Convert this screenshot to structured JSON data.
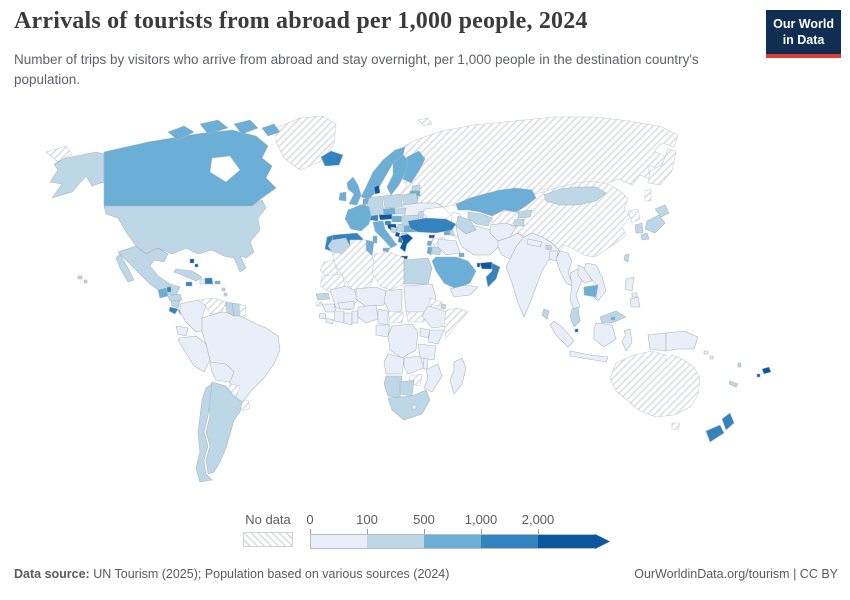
{
  "header": {
    "title": "Arrivals of tourists from abroad per 1,000 people, 2024",
    "subtitle": "Number of trips by visitors who arrive from abroad and stay overnight, per 1,000 people in the destination country's population.",
    "logo_line1": "Our World",
    "logo_line2": "in Data",
    "logo_bg": "#0f2e51",
    "logo_accent": "#dc3f34"
  },
  "legend": {
    "no_data_label": "No data",
    "tick_labels": [
      "0",
      "100",
      "500",
      "1,000",
      "2,000"
    ]
  },
  "footer": {
    "source_label": "Data source:",
    "source_text": " UN Tourism (2025); Population based on various sources (2024)",
    "right_text": "OurWorldinData.org/tourism | CC BY"
  },
  "map": {
    "palette": {
      "bin0": "#e9eef8",
      "bin1": "#bdd7e7",
      "bin2": "#6baed6",
      "bin3": "#3383bf",
      "bin4": "#0d57a1",
      "water": "#ffffff",
      "no_data": "hatch"
    },
    "bin_order": [
      "bin0",
      "bin1",
      "bin2",
      "bin3",
      "bin4"
    ],
    "regions": {
      "chukotka": "no_data",
      "alaska": "bin1",
      "canada": "bin2",
      "greenland": "no_data",
      "iceland": "bin3",
      "usa": "bin1",
      "hawaii": "bin1",
      "mexico": "bin1",
      "belize": "bin3",
      "guatemala": "bin2",
      "honduras": "bin1",
      "nicaragua": "bin1",
      "costa-rica": "bin3",
      "panama": "bin2",
      "cuba": "bin1",
      "jamaica": "bin3",
      "haiti": "bin0",
      "dominican-republic": "bin3",
      "bahamas": "bin4",
      "puerto-rico": "bin2",
      "lesser-antilles": "bin1",
      "trinidad": "bin1",
      "colombia": "bin0",
      "venezuela": "no_data",
      "guyana": "bin1",
      "suriname": "bin1",
      "french-guiana": "no_data",
      "ecuador": "bin0",
      "peru": "bin0",
      "brazil": "bin0",
      "bolivia": "bin0",
      "paraguay": "no_data",
      "uruguay": "no_data",
      "argentina": "bin1",
      "chile": "bin1",
      "norway": "bin2",
      "sweden": "bin2",
      "finland": "bin2",
      "denmark": "bin4",
      "estonia": "bin1",
      "latvia": "bin2",
      "lithuania": "bin2",
      "uk": "bin2",
      "ireland": "bin2",
      "netherlands": "bin2",
      "belgium": "bin2",
      "germany": "bin1",
      "poland": "bin1",
      "belarus": "bin1",
      "ukraine": "bin0",
      "moldova": "bin1",
      "czechia": "bin2",
      "slovakia": "bin1",
      "austria": "bin4",
      "switzerland": "bin3",
      "france": "bin2",
      "spain": "bin3",
      "portugal": "bin3",
      "italy": "bin2",
      "slovenia": "bin3",
      "croatia": "bin4",
      "hungary": "bin2",
      "bosnia": "bin1",
      "serbia": "bin1",
      "montenegro": "bin4",
      "albania": "bin3",
      "north-macedonia": "bin1",
      "greece": "bin4",
      "bulgaria": "bin2",
      "romania": "bin1",
      "russia": "no_data",
      "svalbard": "no_data",
      "georgia": "bin3",
      "armenia": "bin2",
      "azerbaijan": "bin1",
      "turkey": "bin3",
      "cyprus": "bin4",
      "syria": "no_data",
      "lebanon": "bin2",
      "israel": "bin2",
      "jordan": "bin1",
      "iraq": "bin0",
      "iran": "bin0",
      "kuwait": "bin2",
      "saudi-arabia": "bin2",
      "qatar": "bin4",
      "uae": "bin4",
      "oman": "bin3",
      "yemen": "bin0",
      "kazakhstan": "bin2",
      "uzbekistan": "bin1",
      "turkmenistan": "bin1",
      "kyrgyzstan": "bin1",
      "tajikistan": "bin1",
      "afghanistan": "bin0",
      "pakistan": "bin0",
      "india": "bin0",
      "nepal": "bin0",
      "bhutan": "bin1",
      "bangladesh": "bin0",
      "sri-lanka": "bin1",
      "china": "no_data",
      "north-korea": "no_data",
      "mongolia": "bin1",
      "south-korea": "bin1",
      "japan": "bin1",
      "taiwan": "bin1",
      "myanmar": "bin0",
      "thailand": "bin0",
      "laos": "bin0",
      "vietnam": "bin0",
      "cambodia": "bin2",
      "malaysia": "bin1",
      "singapore": "bin4",
      "brunei": "bin2",
      "indonesia": "bin0",
      "philippines": "bin0",
      "papua-new-guinea": "bin0",
      "solomon": "bin0",
      "vanuatu": "bin1",
      "fiji": "bin4",
      "new-caledonia": "bin1",
      "australia": "no_data",
      "new-zealand": "bin3",
      "morocco": "bin1",
      "tunisia": "bin2",
      "algeria": "no_data",
      "western-sahara": "no_data",
      "libya": "no_data",
      "egypt": "bin1",
      "mauritania": "no_data",
      "mali": "bin0",
      "niger": "bin0",
      "chad": "bin0",
      "sudan": "bin0",
      "south-sudan": "no_data",
      "eritrea": "no_data",
      "djibouti": "bin1",
      "ethiopia": "bin0",
      "somalia": "no_data",
      "senegal": "bin1",
      "guinea-bissau": "no_data",
      "guinea": "bin0",
      "sierra-leone": "bin0",
      "liberia": "bin0",
      "ivory-coast": "bin0",
      "ghana": "bin0",
      "togo-benin": "bin0",
      "burkina": "bin0",
      "nigeria": "bin0",
      "cameroon": "bin0",
      "car": "no_data",
      "gabon-congo": "bin0",
      "drc": "bin0",
      "uganda": "bin0",
      "kenya": "bin0",
      "tanzania": "bin0",
      "angola": "bin0",
      "zambia": "bin0",
      "malawi": "bin0",
      "mozambique": "bin0",
      "zimbabwe": "no_data",
      "namibia": "bin1",
      "botswana": "bin1",
      "south-africa": "bin1",
      "lesotho": "bin0",
      "madagascar": "bin0",
      "hudson-bay": "water",
      "black-sea": "water",
      "caspian-sea": "water"
    }
  }
}
